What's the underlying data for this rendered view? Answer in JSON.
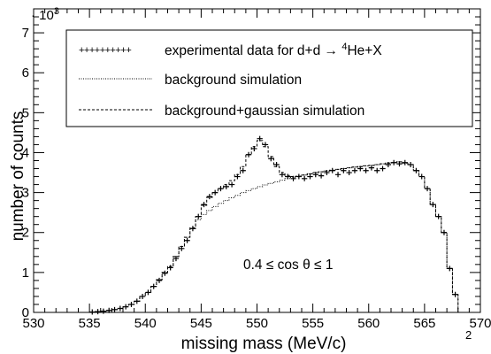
{
  "chart_data": {
    "type": "histogram",
    "xlabel": "missing mass (MeV/c",
    "xlabel_superscript": "2",
    "xlabel_close": ")",
    "ylabel": "number of counts",
    "y_multiplier": "· 10",
    "y_multiplier_exp": "3",
    "annotation": "0.4 ≤ cos θ ≤ 1",
    "xlim": [
      530,
      570
    ],
    "ylim": [
      0,
      7.6
    ],
    "x_ticks": [
      "530",
      "535",
      "540",
      "545",
      "550",
      "555",
      "560",
      "565",
      "570"
    ],
    "y_ticks": [
      "0",
      "1",
      "2",
      "3",
      "4",
      "5",
      "6",
      "7"
    ],
    "grid": false,
    "legend_position": "top-right",
    "legend": [
      {
        "marker": "++++++++++",
        "text": "experimental data for d+d → ",
        "sup": "4",
        "text2": "He+X"
      },
      {
        "marker": "line-dotted",
        "text": "background simulation"
      },
      {
        "marker": "line-dashed",
        "text": "background+gaussian simulation"
      }
    ],
    "bin_edges_start": 530,
    "bin_width": 0.5,
    "series": [
      {
        "name": "experimental data for d+d → 4He+X",
        "style": "crosses",
        "y": [
          0,
          0,
          0,
          0,
          0,
          0,
          0,
          0,
          0,
          0,
          0.01,
          0.02,
          0.03,
          0.05,
          0.07,
          0.1,
          0.14,
          0.2,
          0.28,
          0.4,
          0.5,
          0.65,
          0.8,
          0.98,
          1.12,
          1.35,
          1.6,
          1.8,
          2.1,
          2.4,
          2.7,
          2.9,
          3.0,
          3.1,
          3.15,
          3.2,
          3.4,
          3.55,
          3.95,
          4.1,
          4.35,
          4.2,
          3.85,
          3.7,
          3.45,
          3.4,
          3.35,
          3.4,
          3.35,
          3.4,
          3.45,
          3.42,
          3.5,
          3.55,
          3.45,
          3.55,
          3.5,
          3.55,
          3.6,
          3.55,
          3.62,
          3.55,
          3.6,
          3.7,
          3.75,
          3.72,
          3.75,
          3.7,
          3.55,
          3.4,
          3.1,
          2.7,
          2.4,
          2.0,
          1.1,
          0.45,
          0,
          0,
          0,
          0
        ]
      },
      {
        "name": "background simulation",
        "style": "dotted",
        "y": [
          0,
          0,
          0,
          0,
          0,
          0,
          0,
          0,
          0,
          0,
          0.01,
          0.02,
          0.03,
          0.05,
          0.07,
          0.1,
          0.14,
          0.2,
          0.28,
          0.4,
          0.5,
          0.65,
          0.82,
          1.0,
          1.15,
          1.4,
          1.65,
          1.88,
          2.1,
          2.32,
          2.45,
          2.55,
          2.65,
          2.73,
          2.8,
          2.87,
          2.93,
          3.0,
          3.05,
          3.1,
          3.15,
          3.19,
          3.23,
          3.27,
          3.31,
          3.35,
          3.38,
          3.41,
          3.44,
          3.47,
          3.5,
          3.52,
          3.54,
          3.56,
          3.58,
          3.6,
          3.62,
          3.64,
          3.65,
          3.67,
          3.68,
          3.7,
          3.72,
          3.74,
          3.75,
          3.77,
          3.74,
          3.7,
          3.55,
          3.4,
          3.1,
          2.7,
          2.4,
          2.0,
          1.1,
          0.45,
          0,
          0,
          0,
          0
        ]
      },
      {
        "name": "background+gaussian simulation",
        "style": "dashed",
        "y": [
          0,
          0,
          0,
          0,
          0,
          0,
          0,
          0,
          0,
          0,
          0.01,
          0.02,
          0.03,
          0.05,
          0.07,
          0.1,
          0.14,
          0.2,
          0.28,
          0.4,
          0.5,
          0.65,
          0.82,
          1.0,
          1.15,
          1.4,
          1.65,
          1.88,
          2.12,
          2.4,
          2.68,
          2.88,
          3.0,
          3.1,
          3.2,
          3.3,
          3.45,
          3.65,
          3.95,
          4.15,
          4.3,
          4.15,
          3.9,
          3.65,
          3.5,
          3.43,
          3.4,
          3.41,
          3.44,
          3.47,
          3.5,
          3.52,
          3.54,
          3.56,
          3.58,
          3.6,
          3.62,
          3.64,
          3.65,
          3.67,
          3.68,
          3.7,
          3.72,
          3.74,
          3.75,
          3.77,
          3.74,
          3.7,
          3.55,
          3.4,
          3.1,
          2.7,
          2.4,
          2.0,
          1.1,
          0.45,
          0,
          0,
          0,
          0
        ]
      }
    ]
  }
}
